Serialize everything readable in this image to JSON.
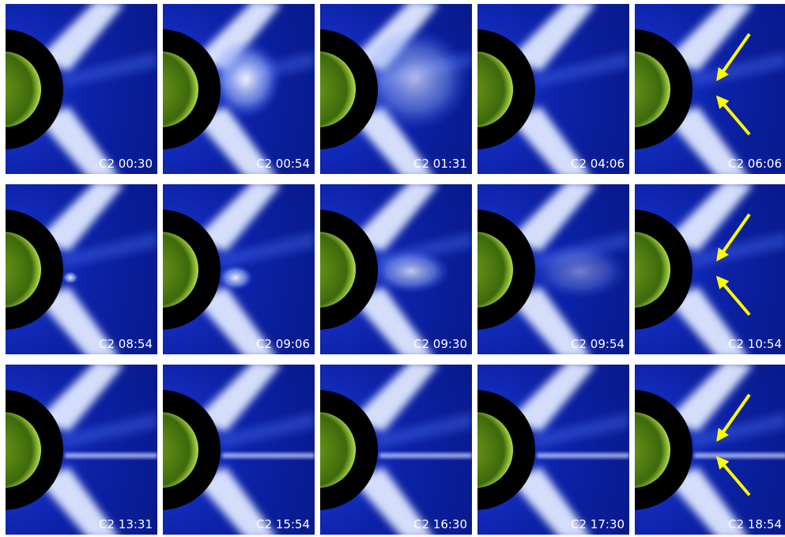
{
  "panels": [
    {
      "label": "C2 00:30"
    },
    {
      "label": "C2 00:54"
    },
    {
      "label": "C2 01:31"
    },
    {
      "label": "C2 04:06"
    },
    {
      "label": "C2 06:06"
    },
    {
      "label": "C2 08:54"
    },
    {
      "label": "C2 09:06"
    },
    {
      "label": "C2 09:30"
    },
    {
      "label": "C2 09:54"
    },
    {
      "label": "C2 10:54"
    },
    {
      "label": "C2 13:31"
    },
    {
      "label": "C2 15:54"
    },
    {
      "label": "C2 16:30"
    },
    {
      "label": "C2 17:30"
    },
    {
      "label": "C2 18:54"
    }
  ]
}
